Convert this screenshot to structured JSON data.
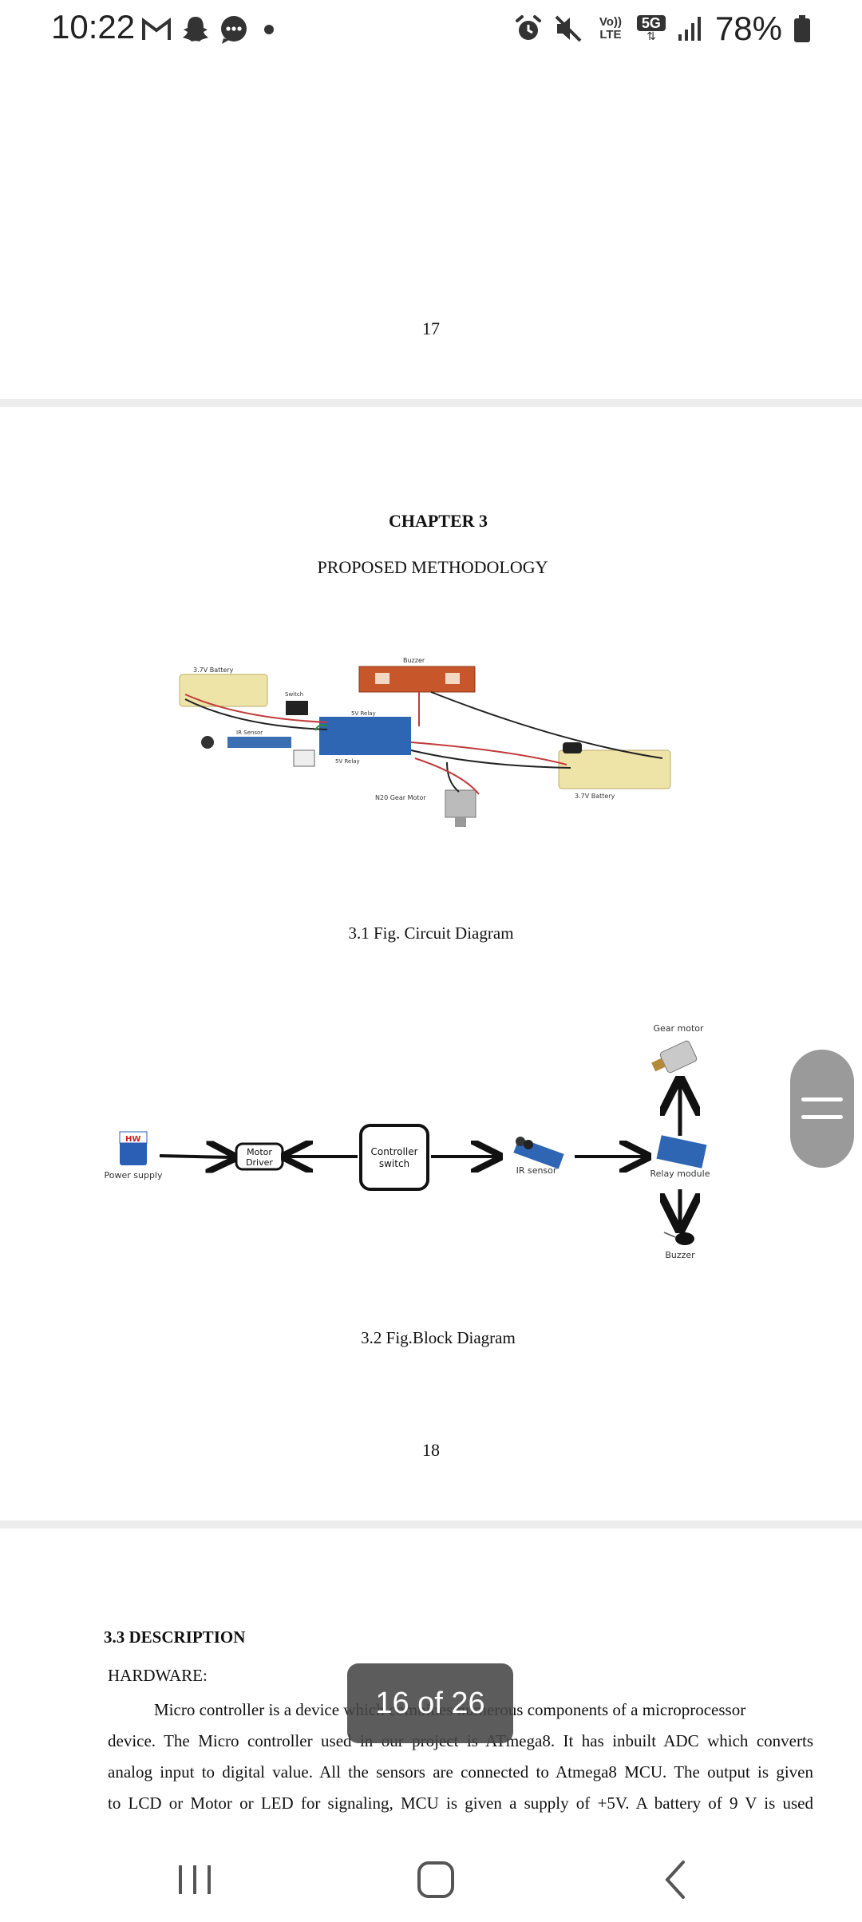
{
  "status_bar": {
    "time": "10:22",
    "notification_icons": [
      "gmail-icon",
      "snapchat-icon",
      "messages-icon",
      "dot-icon"
    ],
    "system_icons": [
      "alarm-icon",
      "mute-icon",
      "volte-icon",
      "5g-icon",
      "signal-icon"
    ],
    "volte_label_top": "Vo))",
    "volte_label_bottom": "LTE",
    "network_label": "5G",
    "battery": "78%"
  },
  "pages": {
    "page17": {
      "number": "17"
    },
    "page18": {
      "chapter_title": "CHAPTER 3",
      "chapter_subtitle": "PROPOSED METHODOLOGY",
      "figure1_caption": "3.1 Fig. Circuit Diagram",
      "figure1_labels": {
        "battery_top": "3.7V Battery",
        "switch": "Switch",
        "relay": "5V Relay",
        "ir_sensor": "IR Sensor",
        "relay2": "5V Relay",
        "motor": "N20 Gear Motor",
        "battery_right": "3.7V Battery",
        "buzzer_board": "Buzzer"
      },
      "figure2_caption": "3.2 Fig.Block Diagram",
      "block_diagram": {
        "power_supply": "Power supply",
        "power_brand": "HW",
        "motor_driver_line1": "Motor",
        "motor_driver_line2": "Driver",
        "controller_line1": "Controller",
        "controller_line2": "switch",
        "ir_sensor": "IR sensor",
        "relay_module": "Relay module",
        "gear_motor": "Gear motor",
        "buzzer": "Buzzer"
      },
      "number": "18"
    },
    "page19": {
      "section_title": "3.3 DESCRIPTION",
      "hardware_label": "HARDWARE:",
      "lines": [
        "Micro controller is a device which combines numerous components of a microprocessor",
        "device. The Micro controller used in our project is ATmega8. It has inbuilt ADC which converts",
        "analog input to digital value. All the sensors are connected to Atmega8 MCU. The output is given",
        "to LCD or Motor or LED for signaling, MCU is given a supply of +5V.  A battery of  9 V is used"
      ]
    }
  },
  "overlay": {
    "page_indicator": "16 of 26"
  },
  "colors": {
    "accent_relay": "#2f66b3",
    "board_orange": "#c8562b",
    "page_gap": "#ececec"
  }
}
